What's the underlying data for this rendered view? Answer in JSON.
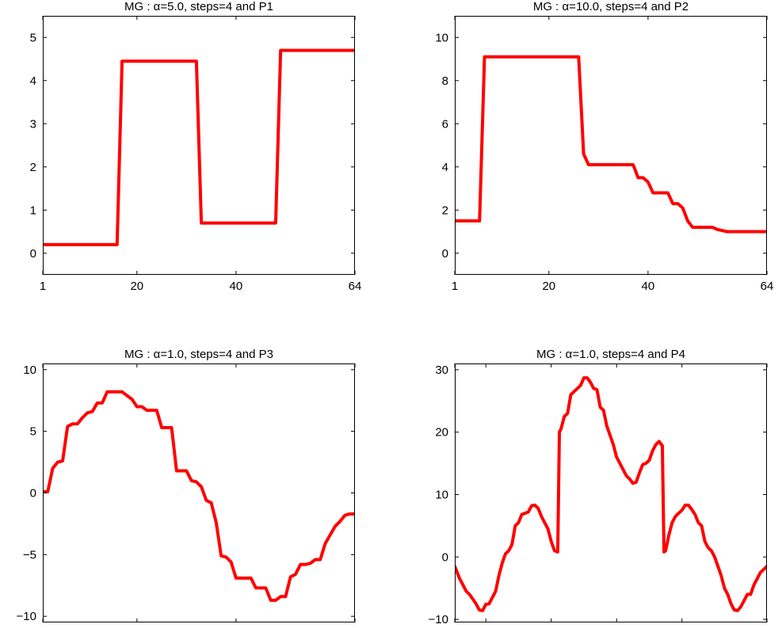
{
  "chart_data": [
    {
      "type": "line",
      "title": "MG : α=5.0, steps=4 and P1",
      "xlabel": "",
      "ylabel": "",
      "xlim": [
        1,
        64
      ],
      "ylim": [
        -0.5,
        5.5
      ],
      "xticks": [
        1,
        20,
        40,
        64
      ],
      "yticks": [
        0,
        1,
        2,
        3,
        4,
        5
      ],
      "grid": false,
      "series": [
        {
          "color": "#ff0000",
          "x": [
            1,
            16,
            17,
            32,
            33,
            48,
            49,
            64
          ],
          "y": [
            0.2,
            0.2,
            4.45,
            4.45,
            0.7,
            0.7,
            4.7,
            4.7
          ]
        }
      ]
    },
    {
      "type": "line",
      "title": "MG : α=10.0, steps=4 and P2",
      "xlabel": "",
      "ylabel": "",
      "xlim": [
        1,
        64
      ],
      "ylim": [
        -1,
        11
      ],
      "xticks": [
        1,
        20,
        40,
        64
      ],
      "yticks": [
        0,
        2,
        4,
        6,
        8,
        10
      ],
      "grid": false,
      "series": [
        {
          "color": "#ff0000",
          "x": [
            1,
            6,
            7,
            26,
            27,
            28,
            37,
            38,
            39,
            40,
            41,
            44,
            45,
            46,
            47,
            48,
            49,
            53,
            54,
            56,
            64
          ],
          "y": [
            1.5,
            1.5,
            9.1,
            9.1,
            4.6,
            4.1,
            4.1,
            3.5,
            3.5,
            3.3,
            2.8,
            2.8,
            2.3,
            2.3,
            2.1,
            1.5,
            1.2,
            1.2,
            1.1,
            1.0,
            1.0
          ]
        }
      ]
    },
    {
      "type": "line",
      "title": "MG : α=1.0, steps=4 and P3",
      "xlabel": "",
      "ylabel": "",
      "xlim": [
        1,
        64
      ],
      "ylim": [
        -10.5,
        10.5
      ],
      "xticks": [
        1,
        20,
        40,
        64
      ],
      "yticks": [
        -10,
        -5,
        0,
        5,
        10
      ],
      "grid": false,
      "series": [
        {
          "color": "#ff0000",
          "x": [
            1,
            2,
            3,
            4,
            5,
            6,
            7,
            8,
            9,
            10,
            11,
            12,
            13,
            14,
            15,
            16,
            17,
            18,
            19,
            20,
            21,
            22,
            23,
            24,
            25,
            26,
            27,
            28,
            29,
            30,
            31,
            32,
            33,
            34,
            35,
            36,
            37,
            38,
            39,
            40,
            41,
            42,
            43,
            44,
            45,
            46,
            47,
            48,
            49,
            50,
            51,
            52,
            53,
            54,
            55,
            56,
            57,
            58,
            59,
            60,
            61,
            62,
            63,
            64
          ],
          "y": [
            0.1,
            0.1,
            2.0,
            2.5,
            2.6,
            5.4,
            5.6,
            5.6,
            6.1,
            6.5,
            6.6,
            7.3,
            7.3,
            8.2,
            8.2,
            8.2,
            8.2,
            7.9,
            7.6,
            7.0,
            7.0,
            6.7,
            6.7,
            6.7,
            5.3,
            5.3,
            5.3,
            1.8,
            1.8,
            1.8,
            1.0,
            0.9,
            0.5,
            -0.6,
            -0.8,
            -2.4,
            -5.1,
            -5.2,
            -5.6,
            -6.9,
            -6.9,
            -6.9,
            -6.9,
            -7.7,
            -7.7,
            -7.7,
            -8.7,
            -8.7,
            -8.4,
            -8.4,
            -6.8,
            -6.6,
            -5.8,
            -5.8,
            -5.7,
            -5.4,
            -5.4,
            -4.1,
            -3.4,
            -2.7,
            -2.3,
            -1.8,
            -1.7,
            -1.7
          ]
        }
      ]
    },
    {
      "type": "line",
      "title": "MG : α=1.0, steps=4 and P4",
      "xlabel": "",
      "ylabel": "",
      "xlim": [
        1,
        192
      ],
      "ylim": [
        -10.5,
        31
      ],
      "xticks": [
        1,
        20,
        60,
        100,
        140,
        192
      ],
      "yticks": [
        -10,
        0,
        10,
        20,
        30
      ],
      "grid": false,
      "series": [
        {
          "color": "#ff0000",
          "x": [
            1,
            4,
            8,
            10,
            14,
            16,
            18,
            20,
            22,
            24,
            26,
            28,
            30,
            32,
            34,
            36,
            38,
            40,
            42,
            44,
            46,
            48,
            50,
            52,
            54,
            56,
            58,
            60,
            62,
            64,
            65,
            66,
            68,
            70,
            72,
            74,
            76,
            78,
            80,
            82,
            84,
            86,
            88,
            90,
            92,
            94,
            96,
            98,
            100,
            102,
            104,
            106,
            108,
            110,
            112,
            114,
            116,
            118,
            120,
            122,
            124,
            126,
            128,
            129,
            130,
            132,
            134,
            136,
            138,
            140,
            142,
            144,
            146,
            148,
            150,
            152,
            154,
            156,
            158,
            160,
            162,
            164,
            166,
            168,
            170,
            172,
            174,
            176,
            178,
            180,
            182,
            184,
            186,
            188,
            190,
            192
          ],
          "y": [
            -1.5,
            -3.5,
            -5.5,
            -6.0,
            -7.5,
            -8.5,
            -8.6,
            -7.6,
            -7.5,
            -6.5,
            -5.5,
            -3.0,
            -1.0,
            0.5,
            1.0,
            2.0,
            5.0,
            5.5,
            6.8,
            7.0,
            7.2,
            8.2,
            8.3,
            7.8,
            6.5,
            5.5,
            4.5,
            2.5,
            1.0,
            0.8,
            20.0,
            20.5,
            22.5,
            23.0,
            26.0,
            26.5,
            27.0,
            27.5,
            28.7,
            28.7,
            28.0,
            27.0,
            26.8,
            24.0,
            23.5,
            21.0,
            19.5,
            18.0,
            16.0,
            15.0,
            14.0,
            13.0,
            12.5,
            11.8,
            12.0,
            13.5,
            14.8,
            15.0,
            15.5,
            17.0,
            18.0,
            18.5,
            17.8,
            0.8,
            1.0,
            3.5,
            5.5,
            6.5,
            7.0,
            7.5,
            8.3,
            8.3,
            7.6,
            6.8,
            5.5,
            5.0,
            2.5,
            1.5,
            1.0,
            0.0,
            -1.5,
            -3.0,
            -5.0,
            -6.0,
            -7.5,
            -8.5,
            -8.6,
            -8.0,
            -7.0,
            -6.0,
            -6.0,
            -4.5,
            -3.5,
            -2.5,
            -2.0,
            -1.5
          ]
        }
      ]
    }
  ]
}
